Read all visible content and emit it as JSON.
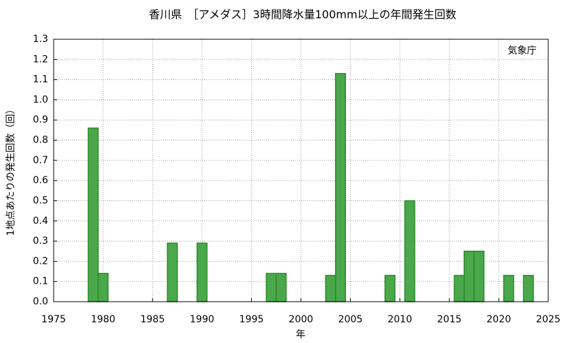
{
  "chart_data": {
    "type": "bar",
    "title": "香川県　［アメダス］3時間降水量100mm以上の年間発生回数",
    "annotation": "気象庁",
    "x_label": "年",
    "y_label": "1地点あたりの発生回数（回）",
    "x": [
      1979,
      1980,
      1987,
      1990,
      1997,
      1998,
      2003,
      2004,
      2009,
      2011,
      2016,
      2017,
      2018,
      2021,
      2023
    ],
    "values": [
      0.86,
      0.14,
      0.29,
      0.29,
      0.14,
      0.14,
      0.13,
      1.13,
      0.13,
      0.5,
      0.13,
      0.25,
      0.25,
      0.13,
      0.13
    ],
    "color": "#4aa84a",
    "edge_color": "#2a8a2a",
    "xlim": [
      1975,
      2025
    ],
    "xticks": [
      1975,
      1980,
      1985,
      1990,
      1995,
      2000,
      2005,
      2010,
      2015,
      2020,
      2025
    ],
    "ylim": [
      0,
      1.3
    ],
    "yticks": [
      {
        "value": 0,
        "label": "0.0"
      },
      0.1,
      0.2,
      0.3,
      0.4,
      0.5,
      0.6,
      0.7,
      0.8,
      0.9,
      {
        "value": 1,
        "label": "1.0"
      },
      1.1,
      1.2,
      1.3
    ],
    "grid": true
  }
}
